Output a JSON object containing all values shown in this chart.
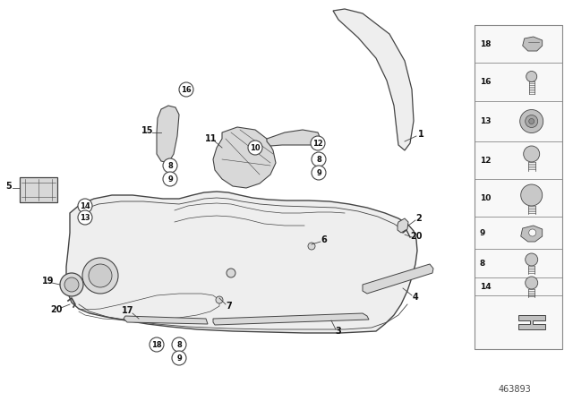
{
  "background_color": "#ffffff",
  "diagram_number": "463893",
  "figure_width": 6.4,
  "figure_height": 4.48,
  "dpi": 100,
  "line_color": "#444444",
  "fill_light": "#eeeeee",
  "fill_mid": "#d8d8d8",
  "fill_dark": "#bbbbbb"
}
